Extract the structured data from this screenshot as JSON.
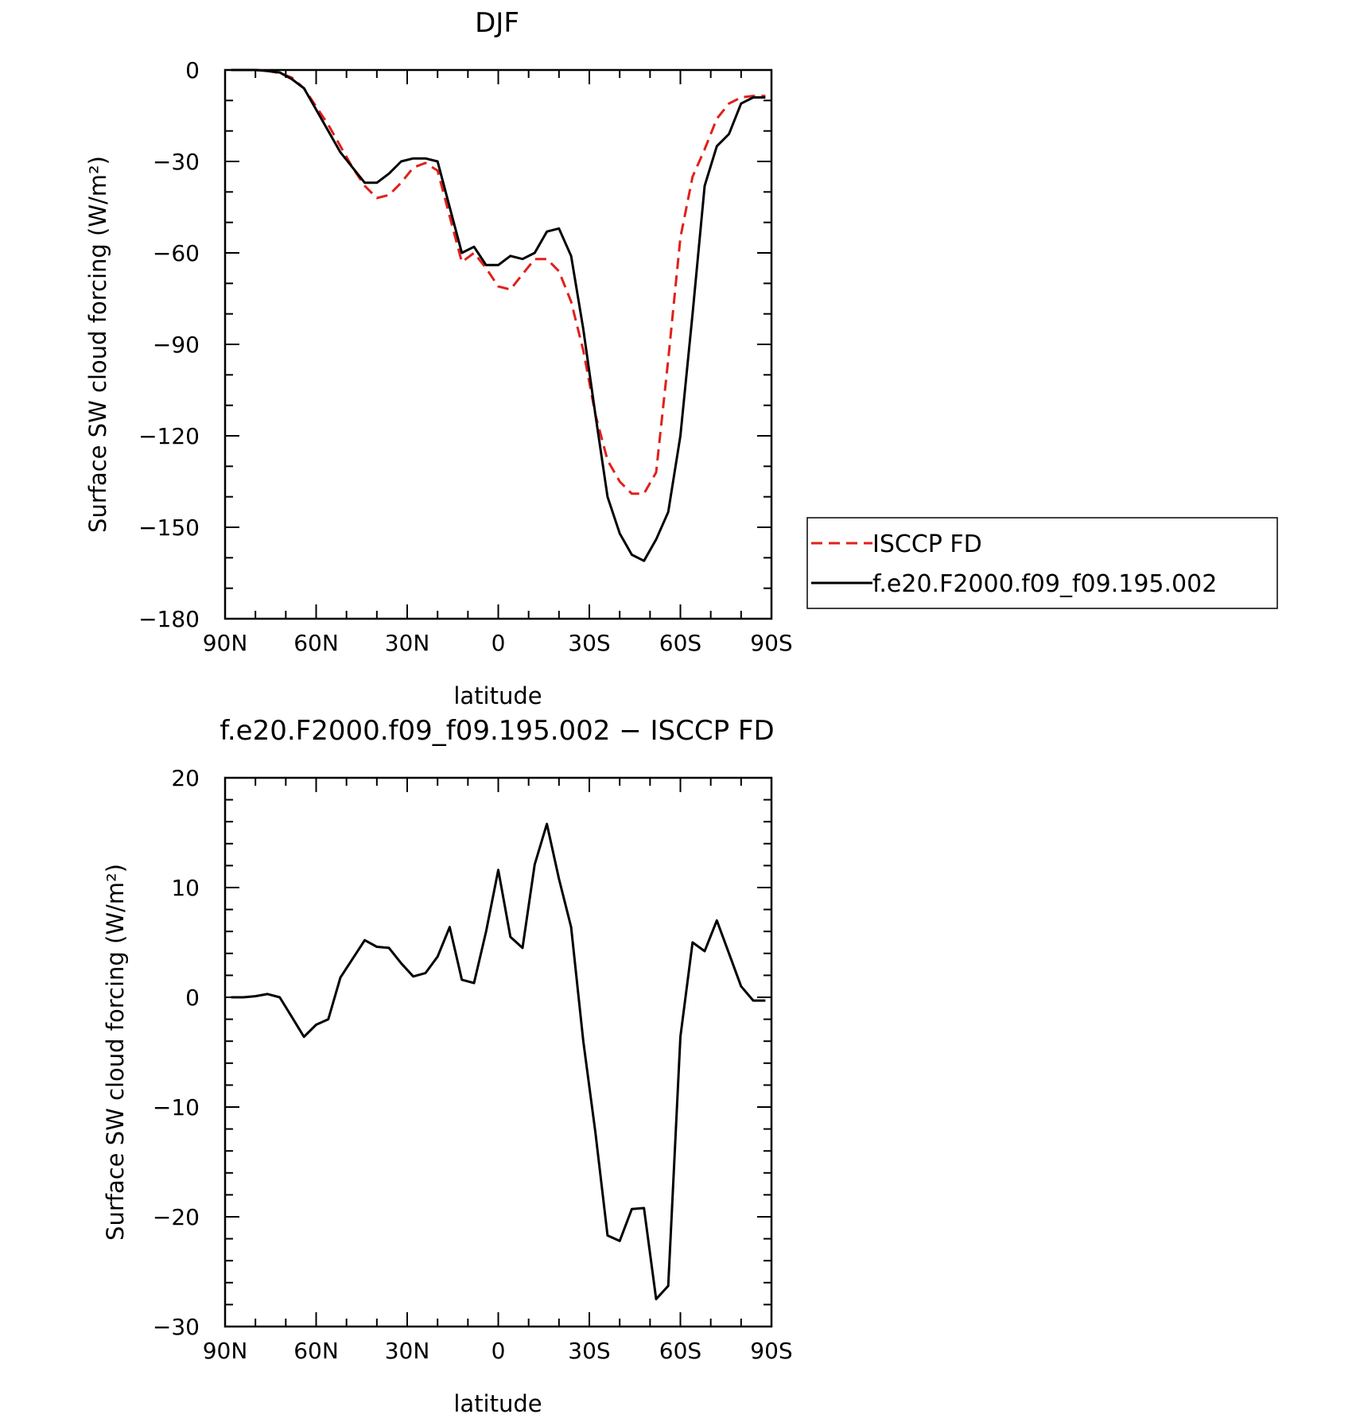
{
  "chart_data": [
    {
      "type": "line",
      "title": "DJF",
      "xlabel": "latitude",
      "ylabel": "Surface SW cloud forcing (W/m²)",
      "x_ticks": [
        "90N",
        "60N",
        "30N",
        "0",
        "30S",
        "60S",
        "90S"
      ],
      "y_ticks": [
        "0",
        "−30",
        "−60",
        "−90",
        "−120",
        "−150",
        "−180"
      ],
      "xlim": [
        90,
        -90
      ],
      "ylim": [
        -180,
        0
      ],
      "grid": false,
      "legend_placement": "right",
      "x": [
        88,
        84,
        80,
        76,
        72,
        68,
        64,
        60,
        56,
        52,
        48,
        44,
        40,
        36,
        32,
        28,
        24,
        20,
        16,
        12,
        8,
        4,
        0,
        -4,
        -8,
        -12,
        -16,
        -20,
        -24,
        -28,
        -32,
        -36,
        -40,
        -44,
        -48,
        -52,
        -56,
        -60,
        -64,
        -68,
        -72,
        -76,
        -80,
        -84,
        -88
      ],
      "series": [
        {
          "name": "ISCCP FD",
          "color": "#e0201b",
          "dash": "dashed",
          "values": [
            0,
            0,
            0,
            -0.3,
            -1,
            -2.5,
            -6,
            -12,
            -18,
            -25,
            -32,
            -38,
            -42,
            -41,
            -37,
            -32,
            -30.5,
            -33,
            -48,
            -63,
            -60,
            -65,
            -71,
            -72,
            -67,
            -62,
            -62,
            -66,
            -76,
            -92,
            -113,
            -128,
            -135,
            -139,
            -139,
            -132,
            -95,
            -55,
            -35,
            -26,
            -16,
            -11,
            -9,
            -8.5,
            -8.5
          ]
        },
        {
          "name": "f.e20.F2000.f09_f09.195.002",
          "color": "#000000",
          "dash": "solid",
          "values": [
            0,
            0,
            0,
            -0.3,
            -0.8,
            -3,
            -6,
            -13,
            -20,
            -27,
            -32,
            -37,
            -37,
            -34,
            -30,
            -29,
            -29,
            -30,
            -45,
            -60,
            -58,
            -64,
            -64,
            -61,
            -62,
            -60,
            -53,
            -52,
            -61,
            -85,
            -113,
            -140,
            -152,
            -159,
            -161,
            -154,
            -145,
            -120,
            -80,
            -38,
            -25,
            -21,
            -11,
            -9,
            -9
          ]
        }
      ]
    },
    {
      "type": "line",
      "title": "f.e20.F2000.f09_f09.195.002 − ISCCP FD",
      "xlabel": "latitude",
      "ylabel": "Surface SW cloud forcing (W/m²)",
      "x_ticks": [
        "90N",
        "60N",
        "30N",
        "0",
        "30S",
        "60S",
        "90S"
      ],
      "y_ticks": [
        "20",
        "10",
        "0",
        "−10",
        "−20",
        "−30"
      ],
      "xlim": [
        90,
        -90
      ],
      "ylim": [
        -30,
        20
      ],
      "grid": false,
      "x": [
        88,
        84,
        80,
        76,
        72,
        68,
        64,
        60,
        56,
        52,
        48,
        44,
        40,
        36,
        32,
        28,
        24,
        20,
        16,
        12,
        8,
        4,
        0,
        -4,
        -8,
        -12,
        -16,
        -20,
        -24,
        -28,
        -32,
        -36,
        -40,
        -44,
        -48,
        -52,
        -56,
        -60,
        -64,
        -68,
        -72,
        -76,
        -80,
        -84,
        -88
      ],
      "series": [
        {
          "name": "",
          "color": "#000000",
          "dash": "solid",
          "values": [
            0,
            0,
            0.1,
            0.3,
            0,
            -1.8,
            -3.6,
            -2.5,
            -2,
            1.8,
            3.5,
            5.2,
            4.6,
            4.5,
            3.1,
            1.9,
            2.2,
            3.7,
            6.4,
            1.6,
            1.3,
            6,
            11.6,
            5.5,
            4.5,
            12.1,
            15.8,
            10.8,
            6.4,
            -4,
            -12.3,
            -21.7,
            -22.2,
            -19.3,
            -19.2,
            -27.5,
            -26.3,
            -3.6,
            5,
            4.2,
            7,
            4,
            1,
            -0.3,
            -0.3
          ]
        }
      ]
    }
  ]
}
